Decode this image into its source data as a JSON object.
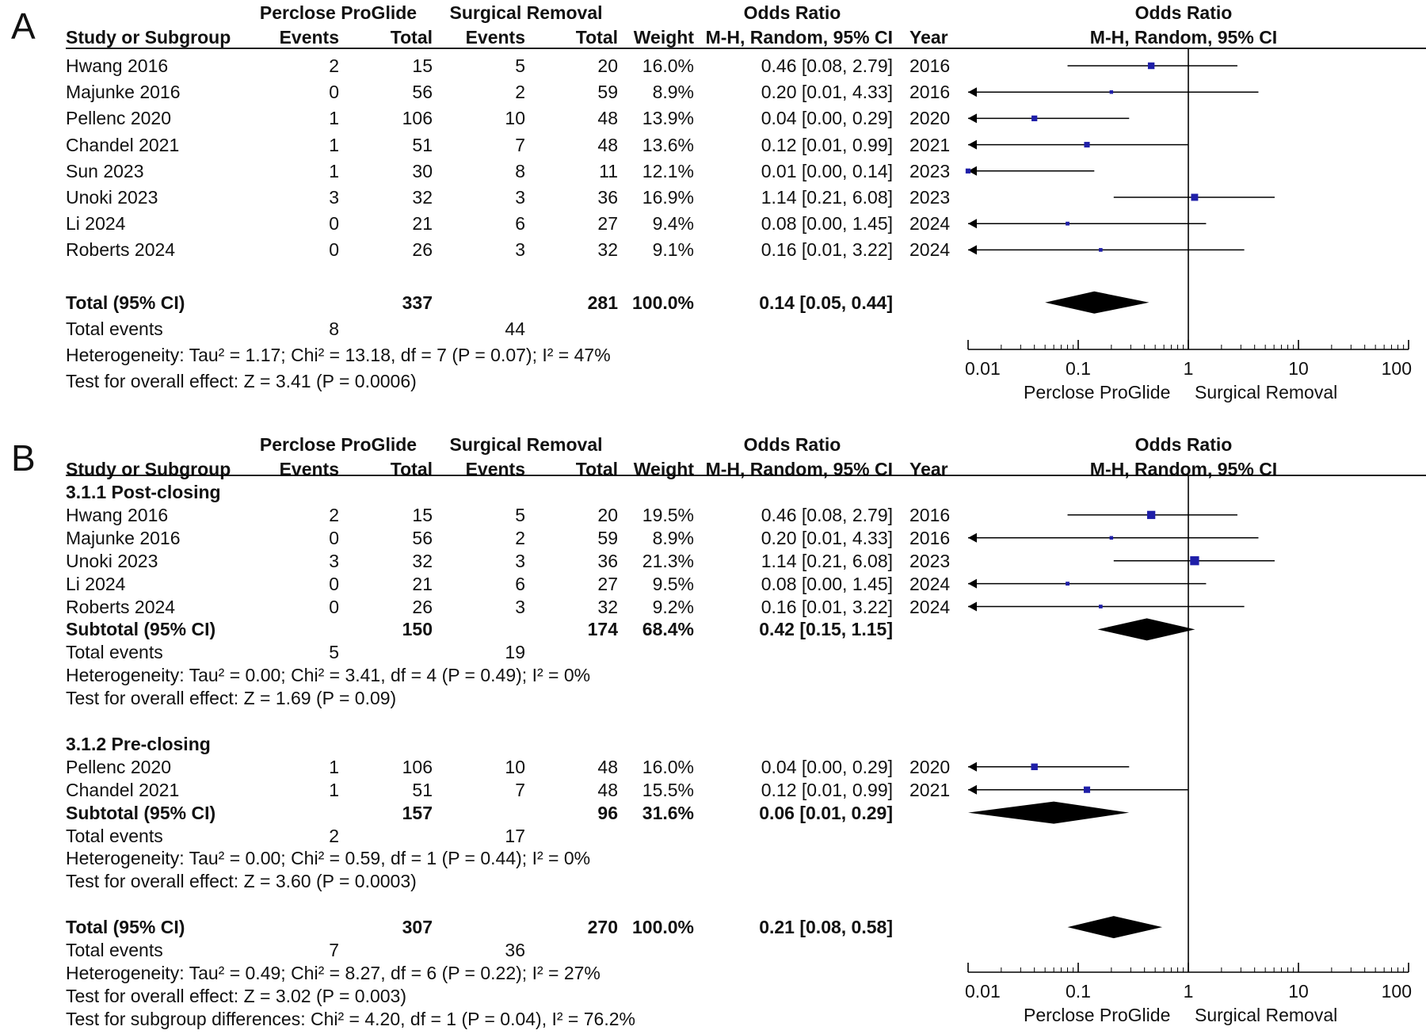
{
  "chart_data": [
    {
      "type": "forest",
      "panel_label": "A",
      "group1": "Perclose ProGlide",
      "group2": "Surgical Removal",
      "headers": {
        "study": "Study or Subgroup",
        "events": "Events",
        "total": "Total",
        "weight": "Weight",
        "or_title": "Odds Ratio",
        "or_method": "M-H, Random, 95% CI",
        "year": "Year"
      },
      "rows": [
        {
          "kind": "study",
          "name": "Hwang 2016",
          "e1": "2",
          "t1": "15",
          "e2": "5",
          "t2": "20",
          "weight": "16.0%",
          "ci_text": "0.46 [0.08, 2.79]",
          "year": "2016",
          "or": 0.46,
          "lo": 0.08,
          "hi": 2.79
        },
        {
          "kind": "study",
          "name": "Majunke 2016",
          "e1": "0",
          "t1": "56",
          "e2": "2",
          "t2": "59",
          "weight": "8.9%",
          "ci_text": "0.20 [0.01, 4.33]",
          "year": "2016",
          "or": 0.2,
          "lo": 0.01,
          "hi": 4.33
        },
        {
          "kind": "study",
          "name": "Pellenc 2020",
          "e1": "1",
          "t1": "106",
          "e2": "10",
          "t2": "48",
          "weight": "13.9%",
          "ci_text": "0.04 [0.00, 0.29]",
          "year": "2020",
          "or": 0.04,
          "lo": 0.0,
          "hi": 0.29
        },
        {
          "kind": "study",
          "name": "Chandel 2021",
          "e1": "1",
          "t1": "51",
          "e2": "7",
          "t2": "48",
          "weight": "13.6%",
          "ci_text": "0.12 [0.01, 0.99]",
          "year": "2021",
          "or": 0.12,
          "lo": 0.01,
          "hi": 0.99
        },
        {
          "kind": "study",
          "name": "Sun 2023",
          "e1": "1",
          "t1": "30",
          "e2": "8",
          "t2": "11",
          "weight": "12.1%",
          "ci_text": "0.01 [0.00, 0.14]",
          "year": "2023",
          "or": 0.01,
          "lo": 0.0,
          "hi": 0.14
        },
        {
          "kind": "study",
          "name": "Unoki 2023",
          "e1": "3",
          "t1": "32",
          "e2": "3",
          "t2": "36",
          "weight": "16.9%",
          "ci_text": "1.14 [0.21, 6.08]",
          "year": "2023",
          "or": 1.14,
          "lo": 0.21,
          "hi": 6.08
        },
        {
          "kind": "study",
          "name": "Li 2024",
          "e1": "0",
          "t1": "21",
          "e2": "6",
          "t2": "27",
          "weight": "9.4%",
          "ci_text": "0.08 [0.00, 1.45]",
          "year": "2024",
          "or": 0.08,
          "lo": 0.0,
          "hi": 1.45
        },
        {
          "kind": "study",
          "name": "Roberts 2024",
          "e1": "0",
          "t1": "26",
          "e2": "3",
          "t2": "32",
          "weight": "9.1%",
          "ci_text": "0.16 [0.01, 3.22]",
          "year": "2024",
          "or": 0.16,
          "lo": 0.01,
          "hi": 3.22
        },
        {
          "kind": "blank"
        },
        {
          "kind": "total",
          "name": "Total (95% CI)",
          "t1": "337",
          "t2": "281",
          "weight": "100.0%",
          "ci_text": "0.14 [0.05, 0.44]",
          "or": 0.14,
          "lo": 0.05,
          "hi": 0.44
        },
        {
          "kind": "events",
          "name": "Total events",
          "e1": "8",
          "e2": "44"
        },
        {
          "kind": "text",
          "text": "Heterogeneity: Tau² = 1.17; Chi² = 13.18, df = 7 (P = 0.07); I² = 47%"
        },
        {
          "kind": "text",
          "text": "Test for overall effect: Z = 3.41 (P = 0.0006)"
        }
      ],
      "axis": {
        "ticks": [
          "0.01",
          "0.1",
          "1",
          "10",
          "100"
        ],
        "scale": "log",
        "xlim": [
          0.01,
          100
        ],
        "favours_left": "Perclose ProGlide",
        "favours_right": "Surgical Removal"
      }
    },
    {
      "type": "forest",
      "panel_label": "B",
      "group1": "Perclose ProGlide",
      "group2": "Surgical Removal",
      "headers": {
        "study": "Study or Subgroup",
        "events": "Events",
        "total": "Total",
        "weight": "Weight",
        "or_title": "Odds Ratio",
        "or_method": "M-H, Random, 95% CI",
        "year": "Year"
      },
      "rows": [
        {
          "kind": "section",
          "text": "3.1.1 Post-closing"
        },
        {
          "kind": "study",
          "name": "Hwang 2016",
          "e1": "2",
          "t1": "15",
          "e2": "5",
          "t2": "20",
          "weight": "19.5%",
          "ci_text": "0.46 [0.08, 2.79]",
          "year": "2016",
          "or": 0.46,
          "lo": 0.08,
          "hi": 2.79
        },
        {
          "kind": "study",
          "name": "Majunke 2016",
          "e1": "0",
          "t1": "56",
          "e2": "2",
          "t2": "59",
          "weight": "8.9%",
          "ci_text": "0.20 [0.01, 4.33]",
          "year": "2016",
          "or": 0.2,
          "lo": 0.01,
          "hi": 4.33
        },
        {
          "kind": "study",
          "name": "Unoki 2023",
          "e1": "3",
          "t1": "32",
          "e2": "3",
          "t2": "36",
          "weight": "21.3%",
          "ci_text": "1.14 [0.21, 6.08]",
          "year": "2023",
          "or": 1.14,
          "lo": 0.21,
          "hi": 6.08
        },
        {
          "kind": "study",
          "name": "Li 2024",
          "e1": "0",
          "t1": "21",
          "e2": "6",
          "t2": "27",
          "weight": "9.5%",
          "ci_text": "0.08 [0.00, 1.45]",
          "year": "2024",
          "or": 0.08,
          "lo": 0.0,
          "hi": 1.45
        },
        {
          "kind": "study",
          "name": "Roberts 2024",
          "e1": "0",
          "t1": "26",
          "e2": "3",
          "t2": "32",
          "weight": "9.2%",
          "ci_text": "0.16 [0.01, 3.22]",
          "year": "2024",
          "or": 0.16,
          "lo": 0.01,
          "hi": 3.22
        },
        {
          "kind": "subtotal",
          "name": "Subtotal (95% CI)",
          "t1": "150",
          "t2": "174",
          "weight": "68.4%",
          "ci_text": "0.42 [0.15, 1.15]",
          "or": 0.42,
          "lo": 0.15,
          "hi": 1.15
        },
        {
          "kind": "events",
          "name": "Total events",
          "e1": "5",
          "e2": "19"
        },
        {
          "kind": "text",
          "text": "Heterogeneity: Tau² = 0.00; Chi² = 3.41, df = 4 (P = 0.49); I² = 0%"
        },
        {
          "kind": "text",
          "text": "Test for overall effect: Z = 1.69 (P = 0.09)"
        },
        {
          "kind": "blank"
        },
        {
          "kind": "section",
          "text": "3.1.2 Pre-closing"
        },
        {
          "kind": "study",
          "name": "Pellenc 2020",
          "e1": "1",
          "t1": "106",
          "e2": "10",
          "t2": "48",
          "weight": "16.0%",
          "ci_text": "0.04 [0.00, 0.29]",
          "year": "2020",
          "or": 0.04,
          "lo": 0.0,
          "hi": 0.29
        },
        {
          "kind": "study",
          "name": "Chandel 2021",
          "e1": "1",
          "t1": "51",
          "e2": "7",
          "t2": "48",
          "weight": "15.5%",
          "ci_text": "0.12 [0.01, 0.99]",
          "year": "2021",
          "or": 0.12,
          "lo": 0.01,
          "hi": 0.99
        },
        {
          "kind": "subtotal",
          "name": "Subtotal (95% CI)",
          "t1": "157",
          "t2": "96",
          "weight": "31.6%",
          "ci_text": "0.06 [0.01, 0.29]",
          "or": 0.06,
          "lo": 0.01,
          "hi": 0.29
        },
        {
          "kind": "events",
          "name": "Total events",
          "e1": "2",
          "e2": "17"
        },
        {
          "kind": "text",
          "text": "Heterogeneity: Tau² = 0.00; Chi² = 0.59, df = 1 (P = 0.44); I² = 0%"
        },
        {
          "kind": "text",
          "text": "Test for overall effect: Z = 3.60 (P = 0.0003)"
        },
        {
          "kind": "blank"
        },
        {
          "kind": "total",
          "name": "Total (95% CI)",
          "t1": "307",
          "t2": "270",
          "weight": "100.0%",
          "ci_text": "0.21 [0.08, 0.58]",
          "or": 0.21,
          "lo": 0.08,
          "hi": 0.58
        },
        {
          "kind": "events",
          "name": "Total events",
          "e1": "7",
          "e2": "36"
        },
        {
          "kind": "text",
          "text": "Heterogeneity: Tau² = 0.49; Chi² = 8.27, df = 6 (P = 0.22); I² = 27%"
        },
        {
          "kind": "text",
          "text": "Test for overall effect: Z = 3.02 (P = 0.003)"
        },
        {
          "kind": "text",
          "text": "Test for subgroup differences: Chi² = 4.20, df = 1 (P = 0.04), I² = 76.2%"
        }
      ],
      "axis": {
        "ticks": [
          "0.01",
          "0.1",
          "1",
          "10",
          "100"
        ],
        "scale": "log",
        "xlim": [
          0.01,
          100
        ],
        "favours_left": "Perclose ProGlide",
        "favours_right": "Surgical Removal"
      }
    }
  ],
  "colors": {
    "marker": "#1f1fa8",
    "line": "#000000",
    "diamond": "#000000"
  }
}
